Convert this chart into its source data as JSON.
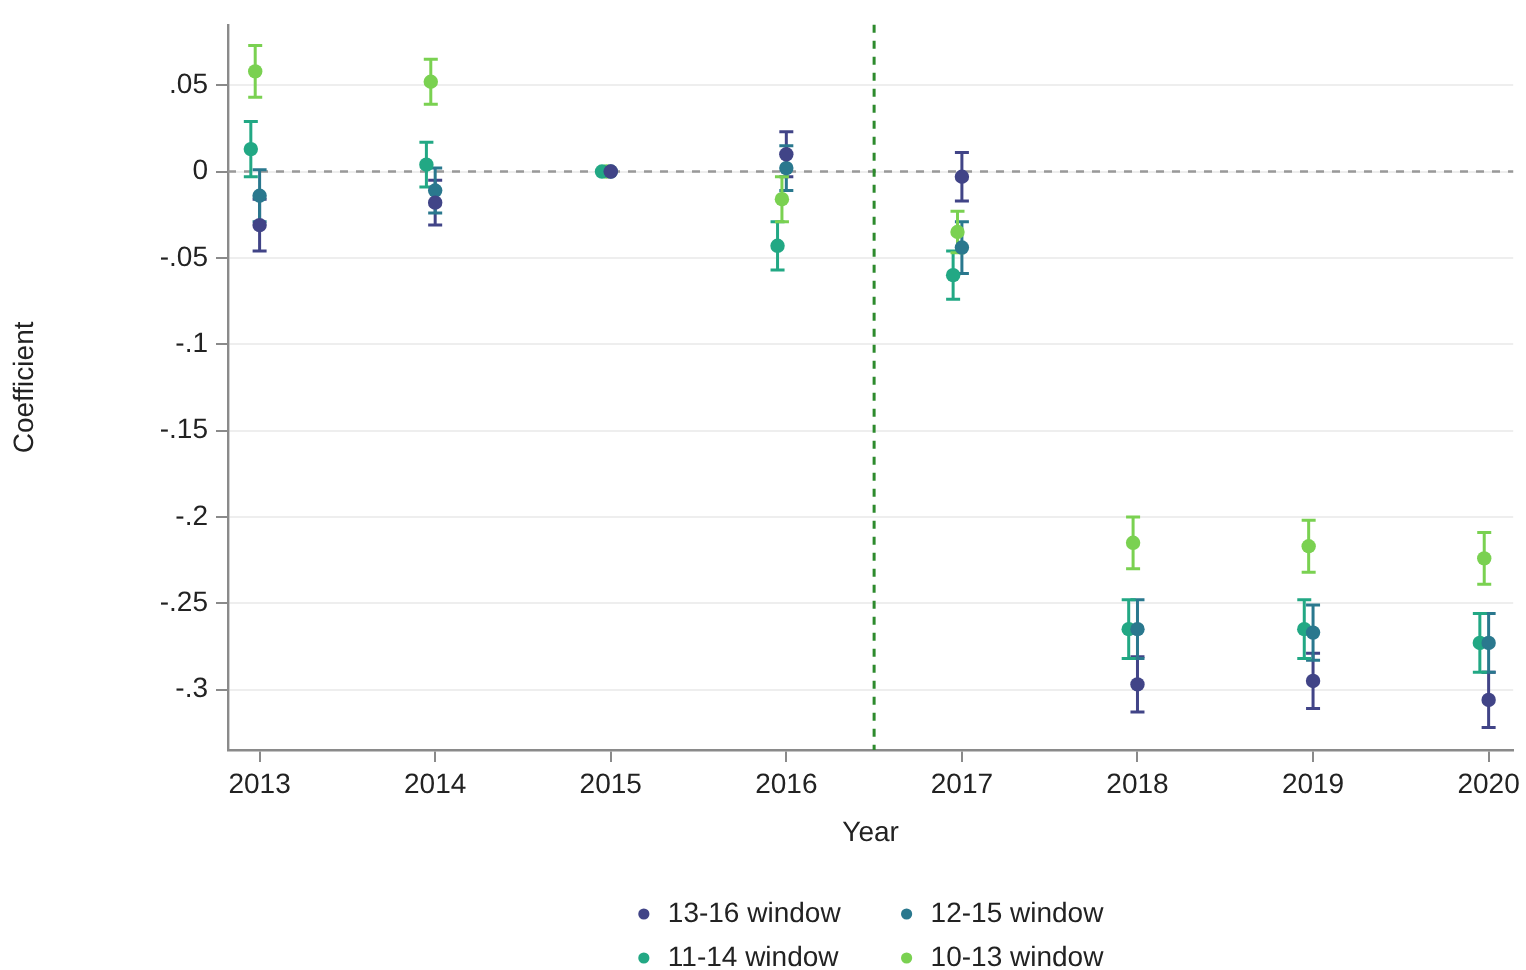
{
  "chart_data": {
    "type": "scatter",
    "xlabel": "Year",
    "ylabel": "Coefficient",
    "xlim": [
      2012.82,
      2020.14
    ],
    "xticks": [
      2013,
      2014,
      2015,
      2016,
      2017,
      2018,
      2019,
      2020
    ],
    "ylim": [
      -0.335,
      0.085
    ],
    "yticks": [
      {
        "value": 0.05,
        "label": ".05"
      },
      0,
      {
        "value": -0.05,
        "label": "-.05"
      },
      {
        "value": -0.1,
        "label": "-.1"
      },
      {
        "value": -0.15,
        "label": "-.15"
      },
      {
        "value": -0.2,
        "label": "-.2"
      },
      {
        "value": -0.25,
        "label": "-.25"
      },
      {
        "value": -0.3,
        "label": "-.3"
      }
    ],
    "grid": "y",
    "legend": "bottom",
    "marker": "circle",
    "ref_lines": [
      {
        "axis": "y",
        "value": 0,
        "color": "#999999",
        "line_style": "dashed"
      },
      {
        "axis": "x",
        "value": 2016.5,
        "color": "#2d8a2d",
        "line_style": "dashed"
      }
    ],
    "series": [
      {
        "name": "13-16 window",
        "color": "#414487",
        "x": [
          2013,
          2014,
          2015,
          2016,
          2017,
          2018,
          2019,
          2020
        ],
        "values": [
          -0.031,
          -0.018,
          0,
          0.01,
          -0.003,
          -0.297,
          -0.295,
          -0.306
        ],
        "errors": [
          0.015,
          0.013,
          null,
          0.013,
          0.014,
          0.016,
          0.016,
          0.016
        ]
      },
      {
        "name": "12-15 window",
        "color": "#2a788e",
        "x": [
          2013,
          2014,
          2015,
          2016,
          2017,
          2018,
          2019,
          2020
        ],
        "values": [
          -0.014,
          -0.011,
          0,
          0.002,
          -0.044,
          -0.265,
          -0.267,
          -0.273
        ],
        "errors": [
          0.015,
          0.013,
          null,
          0.013,
          0.015,
          0.017,
          0.016,
          0.017
        ]
      },
      {
        "name": "11-14 window",
        "color": "#22a884",
        "x": [
          2012.95,
          2013.95,
          2014.95,
          2015.95,
          2016.95,
          2017.95,
          2018.95,
          2019.95
        ],
        "values": [
          0.013,
          0.004,
          0,
          -0.043,
          -0.06,
          -0.265,
          -0.265,
          -0.273
        ],
        "errors": [
          0.016,
          0.013,
          null,
          0.014,
          0.014,
          0.017,
          0.017,
          0.017
        ]
      },
      {
        "name": "10-13 window",
        "color": "#7ad151",
        "x": [
          2012.975,
          2013.975,
          2014.975,
          2015.975,
          2016.975,
          2017.975,
          2018.975,
          2019.975
        ],
        "values": [
          0.058,
          0.052,
          0,
          -0.016,
          -0.035,
          -0.215,
          -0.217,
          -0.224
        ],
        "errors": [
          0.015,
          0.013,
          null,
          0.013,
          0.012,
          0.015,
          0.015,
          0.015
        ]
      }
    ]
  }
}
